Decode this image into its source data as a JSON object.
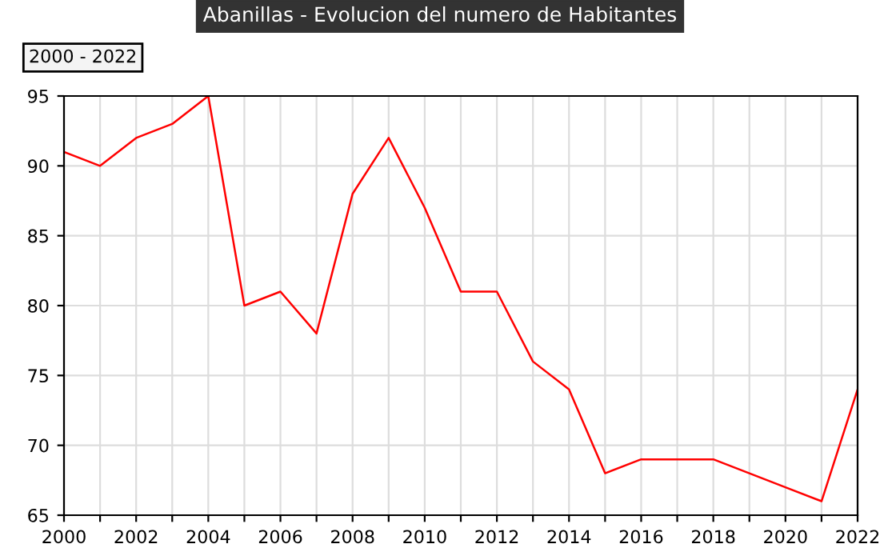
{
  "chart_data": {
    "type": "line",
    "title": "Abanillas - Evolucion del numero de Habitantes",
    "annotations": [
      "2000 - 2022"
    ],
    "x": [
      2000,
      2001,
      2002,
      2003,
      2004,
      2005,
      2006,
      2007,
      2008,
      2009,
      2010,
      2011,
      2012,
      2013,
      2014,
      2015,
      2016,
      2017,
      2018,
      2019,
      2020,
      2021,
      2022
    ],
    "series": [
      {
        "color": "#ff0000",
        "values": [
          91,
          90,
          92,
          93,
          95,
          80,
          81,
          78,
          88,
          92,
          87,
          81,
          81,
          76,
          74,
          68,
          69,
          69,
          69,
          68,
          67,
          66,
          74
        ]
      }
    ],
    "xlim": [
      2000,
      2022
    ],
    "xticks": [
      2000,
      {
        "value": 2001,
        "label": null
      },
      2002,
      {
        "value": 2003,
        "label": null
      },
      2004,
      {
        "value": 2005,
        "label": null
      },
      2006,
      {
        "value": 2007,
        "label": null
      },
      2008,
      {
        "value": 2009,
        "label": null
      },
      2010,
      {
        "value": 2011,
        "label": null
      },
      2012,
      {
        "value": 2013,
        "label": null
      },
      2014,
      {
        "value": 2015,
        "label": null
      },
      2016,
      {
        "value": 2017,
        "label": null
      },
      2018,
      {
        "value": 2019,
        "label": null
      },
      2020,
      {
        "value": 2021,
        "label": null
      },
      2022
    ],
    "ylim": [
      65,
      95
    ],
    "yticks": [
      65,
      70,
      75,
      80,
      85,
      90,
      95
    ],
    "grid": true,
    "marker": "none",
    "line_style": "solid",
    "legend": false
  }
}
